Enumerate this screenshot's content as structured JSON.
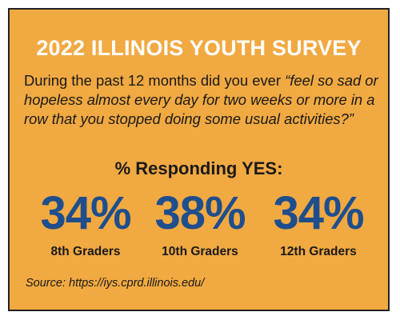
{
  "colors": {
    "background": "#f1a942",
    "title": "#ffffff",
    "stat_value": "#1f4e8c",
    "text": "#1a1a1a",
    "border": "#222222"
  },
  "title": "2022 ILLINOIS YOUTH SURVEY",
  "question": {
    "intro": "During the past 12 months did you ever ",
    "quote": "“feel so sad or hopeless almost every day for two weeks or more in a row that you stopped doing some usual activities?”"
  },
  "responding_label": "% Responding YES:",
  "stats": [
    {
      "value": "34%",
      "label": "8th Graders"
    },
    {
      "value": "38%",
      "label": "10th Graders"
    },
    {
      "value": "34%",
      "label": "12th Graders"
    }
  ],
  "source": "Source: https://iys.cprd.illinois.edu/"
}
